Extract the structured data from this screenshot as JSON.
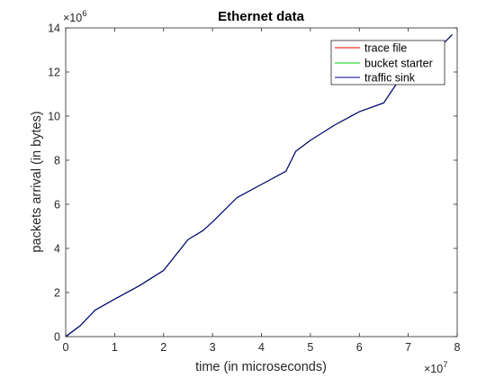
{
  "chart_data": {
    "type": "line",
    "title": "Ethernet data",
    "xlabel": "time (in microseconds)",
    "ylabel": "packets arrival (in bytes)",
    "x_exponent_base": "×10",
    "x_exponent_power": "7",
    "y_exponent_base": "×10",
    "y_exponent_power": "6",
    "xlim": [
      0,
      8
    ],
    "ylim": [
      0,
      14
    ],
    "x_ticks": [
      "0",
      "1",
      "2",
      "3",
      "4",
      "5",
      "6",
      "7",
      "8"
    ],
    "y_ticks": [
      "0",
      "2",
      "4",
      "6",
      "8",
      "10",
      "12",
      "14"
    ],
    "legend_position": "top-right",
    "series": [
      {
        "name": "trace file",
        "color": "#ff0000",
        "x": [
          0,
          0.3,
          0.6,
          1.0,
          1.5,
          2.0,
          2.5,
          2.8,
          3.0,
          3.5,
          4.0,
          4.5,
          4.7,
          5.0,
          5.5,
          6.0,
          6.5,
          6.8,
          7.0,
          7.5,
          7.9
        ],
        "y": [
          0,
          0.5,
          1.2,
          1.7,
          2.3,
          3.0,
          4.4,
          4.8,
          5.2,
          6.3,
          6.9,
          7.5,
          8.4,
          8.9,
          9.6,
          10.2,
          10.6,
          11.6,
          12.1,
          12.8,
          13.7
        ]
      },
      {
        "name": "bucket starter",
        "color": "#00cc00",
        "x": [
          0,
          0.3,
          0.6,
          1.0,
          1.5,
          2.0,
          2.5,
          2.8,
          3.0,
          3.5,
          4.0,
          4.5,
          4.7,
          5.0,
          5.5,
          6.0,
          6.5,
          6.8,
          7.0,
          7.5,
          7.9
        ],
        "y": [
          0,
          0.5,
          1.2,
          1.7,
          2.3,
          3.0,
          4.4,
          4.8,
          5.2,
          6.3,
          6.9,
          7.5,
          8.4,
          8.9,
          9.6,
          10.2,
          10.6,
          11.6,
          12.1,
          12.8,
          13.7
        ]
      },
      {
        "name": "traffic sink",
        "color": "#00008b",
        "x": [
          0,
          0.3,
          0.6,
          1.0,
          1.5,
          2.0,
          2.5,
          2.8,
          3.0,
          3.5,
          4.0,
          4.5,
          4.7,
          5.0,
          5.5,
          6.0,
          6.5,
          6.8,
          7.0,
          7.5,
          7.9
        ],
        "y": [
          0,
          0.5,
          1.2,
          1.7,
          2.3,
          3.0,
          4.4,
          4.8,
          5.2,
          6.3,
          6.9,
          7.5,
          8.4,
          8.9,
          9.6,
          10.2,
          10.6,
          11.6,
          12.1,
          12.8,
          13.7
        ]
      }
    ],
    "grid": false
  }
}
